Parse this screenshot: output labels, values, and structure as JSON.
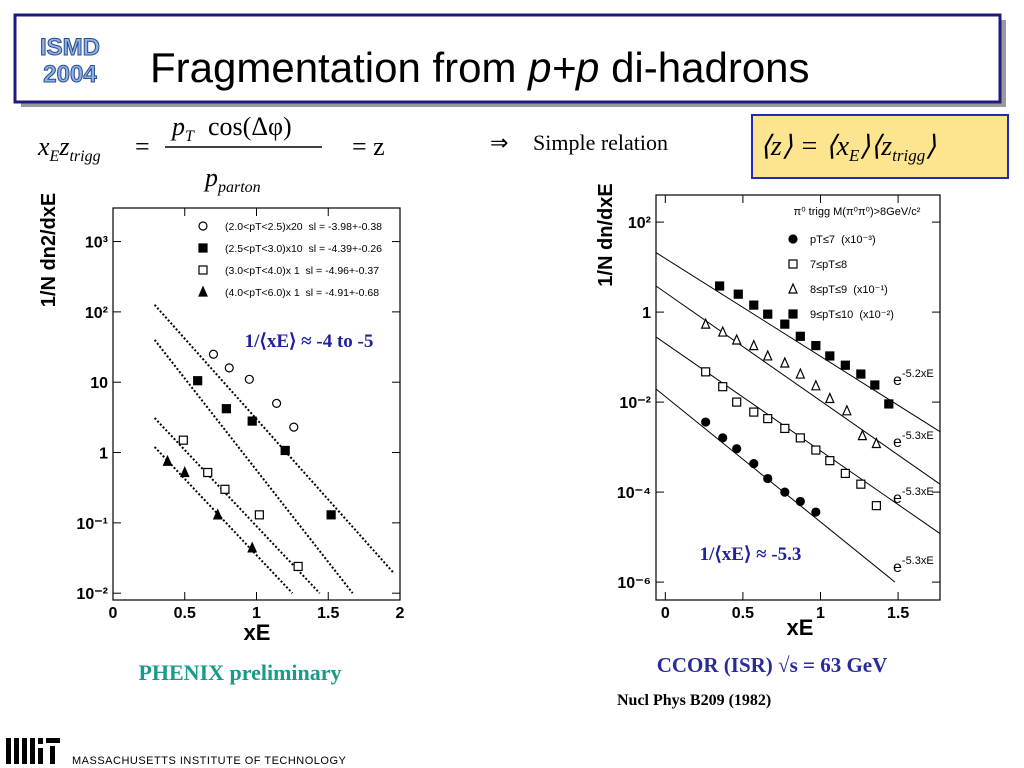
{
  "slide": {
    "logo": [
      "ISMD",
      "2004"
    ],
    "title": [
      "Fragmentation from ",
      "p+p",
      " di-hadrons"
    ],
    "formula": {
      "x": "x",
      "x_sub": "E",
      "z": "z",
      "z_sub": "trigg",
      "eq": "=",
      "num_p": "p",
      "num_p_sub": "T",
      "num_cos": "cos(Δφ)",
      "den_p": "p",
      "den_p_sub": "parton",
      "rhs": "= z"
    },
    "arrow": "⇒",
    "relation": "Simple relation",
    "box": [
      "⟨z⟩ = ⟨x",
      "E",
      "⟩⟨z",
      "trigg",
      "⟩"
    ],
    "left_caption": "PHENIX preliminary",
    "right_caption": "CCOR (ISR) √s = 63 GeV",
    "reference": "Nucl Phys B209 (1982)",
    "footer": "MASSACHUSETTS INSTITUTE OF TECHNOLOGY"
  },
  "chart_data": [
    {
      "type": "scatter",
      "log_y": true,
      "x_label": "xE",
      "y_label": "1/N dn2/dxE",
      "xlim": [
        0,
        2
      ],
      "ylim": [
        0.008,
        3000
      ],
      "xticks": [
        0,
        0.5,
        1,
        1.5,
        2
      ],
      "yticks": [
        {
          "value": 0.01,
          "label": "10⁻²"
        },
        {
          "value": 0.1,
          "label": "10⁻¹"
        },
        1,
        10,
        {
          "value": 100,
          "label": "10²"
        },
        {
          "value": 1000,
          "label": "10³"
        }
      ],
      "legend": "upper right",
      "fit_style": "dotted",
      "series": [
        {
          "name": "(2.0<pT<2.5)x20  sl = -3.98+-0.38",
          "color": "#000000",
          "marker": "circle-open",
          "x": [
            0.7,
            0.81,
            0.95,
            1.14,
            1.26
          ],
          "values": [
            25,
            16,
            11,
            5,
            2.3
          ]
        },
        {
          "name": "(2.5<pT<3.0)x10  sl = -4.39+-0.26",
          "color": "#000000",
          "marker": "square",
          "x": [
            0.59,
            0.79,
            0.97,
            1.2,
            1.52
          ],
          "values": [
            10.5,
            4.2,
            2.8,
            1.07,
            0.13
          ]
        },
        {
          "name": "(3.0<pT<4.0)x 1  sl = -4.96+-0.37",
          "color": "#000000",
          "marker": "square-open",
          "x": [
            0.49,
            0.66,
            0.78,
            1.02,
            1.29
          ],
          "values": [
            1.5,
            0.52,
            0.3,
            0.13,
            0.024
          ]
        },
        {
          "name": "(4.0<pT<6.0)x 1  sl = -4.91+-0.68",
          "color": "#000000",
          "marker": "triangle",
          "x": [
            0.38,
            0.5,
            0.73,
            0.97
          ],
          "values": [
            0.75,
            0.52,
            0.13,
            0.044
          ]
        }
      ],
      "fits": [
        {
          "x": [
            0.29,
            1.96
          ],
          "values": [
            126,
            0.019
          ]
        },
        {
          "x": [
            0.29,
            1.67
          ],
          "values": [
            40,
            0.01
          ]
        },
        {
          "x": [
            0.29,
            1.44
          ],
          "values": [
            3.1,
            0.01
          ]
        },
        {
          "x": [
            0.29,
            1.25
          ],
          "values": [
            1.2,
            0.01
          ]
        }
      ],
      "annotation": "1/⟨xE⟩ ≈ -4 to -5"
    },
    {
      "type": "scatter",
      "log_y": true,
      "x_label": "xE",
      "y_label": "1/N dn/dxE",
      "xlim": [
        -0.06,
        1.77
      ],
      "ylim": [
        4e-07,
        400
      ],
      "xticks": [
        0,
        0.5,
        1,
        1.5
      ],
      "yticks": [
        {
          "value": 1e-06,
          "label": "10⁻⁶"
        },
        {
          "value": 0.0001,
          "label": "10⁻⁴"
        },
        {
          "value": 0.01,
          "label": "10⁻²"
        },
        1,
        {
          "value": 100,
          "label": "10²"
        }
      ],
      "legend": "upper right",
      "legend_title": "π⁰ trigg M(π⁰π⁰)>8GeV/c²",
      "fit_style": "solid",
      "series": [
        {
          "name": "pT≤7  (x10⁻³)",
          "color": "#000000",
          "marker": "circle",
          "x": [
            0.26,
            0.37,
            0.46,
            0.57,
            0.66,
            0.77,
            0.87,
            0.97
          ],
          "values": [
            0.0036,
            0.0016,
            0.00092,
            0.00043,
            0.0002,
            0.0001,
            6.2e-05,
            3.6e-05
          ]
        },
        {
          "name": "7≤pT≤8",
          "color": "#000000",
          "marker": "square-open",
          "x": [
            0.26,
            0.37,
            0.46,
            0.57,
            0.66,
            0.77,
            0.87,
            0.97,
            1.06,
            1.16,
            1.26,
            1.36
          ],
          "values": [
            0.047,
            0.022,
            0.01,
            0.006,
            0.0043,
            0.0026,
            0.0016,
            0.00086,
            0.0005,
            0.00026,
            0.00015,
            5e-05
          ]
        },
        {
          "name": "8≤pT≤9  (x10⁻¹)",
          "color": "#000000",
          "marker": "triangle-open",
          "x": [
            0.26,
            0.37,
            0.46,
            0.57,
            0.66,
            0.77,
            0.87,
            0.97,
            1.06,
            1.17,
            1.27,
            1.36
          ],
          "values": [
            0.54,
            0.36,
            0.24,
            0.18,
            0.106,
            0.074,
            0.042,
            0.023,
            0.012,
            0.0064,
            0.0018,
            0.0012
          ]
        },
        {
          "name": "9≤pT≤10  (x10⁻²)",
          "color": "#000000",
          "marker": "square",
          "x": [
            0.35,
            0.47,
            0.57,
            0.66,
            0.77,
            0.87,
            0.97,
            1.06,
            1.16,
            1.26,
            1.35,
            1.44
          ],
          "values": [
            3.8,
            2.5,
            1.43,
            0.9,
            0.54,
            0.29,
            0.18,
            0.106,
            0.066,
            0.042,
            0.024,
            0.0091
          ]
        }
      ],
      "fits": [
        {
          "x": [
            -0.06,
            1.77
          ],
          "values": [
            21,
            0.0022
          ],
          "label_base": "e",
          "label_exp": "-5.2xE"
        },
        {
          "x": [
            -0.06,
            1.77
          ],
          "values": [
            3.8,
            0.00015
          ],
          "label_base": "e",
          "label_exp": "-5.3xE"
        },
        {
          "x": [
            -0.06,
            1.77
          ],
          "values": [
            0.28,
            1.2e-05
          ],
          "label_base": "e",
          "label_exp": "-5.3xE"
        },
        {
          "x": [
            -0.06,
            1.48
          ],
          "values": [
            0.0195,
            1e-06
          ],
          "label_base": "e",
          "label_exp": "-5.3xE"
        }
      ],
      "annotation": "1/⟨xE⟩ ≈ -5.3"
    }
  ]
}
